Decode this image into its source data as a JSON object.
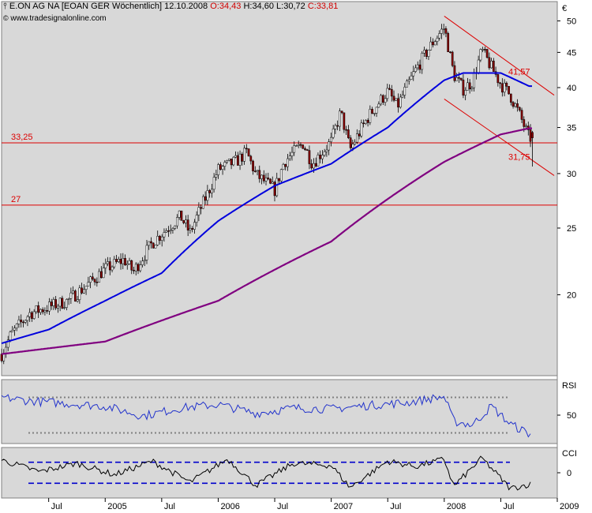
{
  "header": {
    "icon": "candlestick-icon",
    "instrument": "E.ON AG NA [EOAN GER  Wöchentlich]",
    "date": "12.10.2008",
    "ohlc": {
      "open_label": "O:",
      "open": "34,43",
      "high_label": "H:",
      "high": "34,60",
      "low_label": "L:",
      "low": "30,72",
      "close_label": "C:",
      "close": "33,81"
    }
  },
  "credit": {
    "mark": "©",
    "text": "www.tradesignalonline.com"
  },
  "colors": {
    "panel_bg": "#d8d8d8",
    "candle_up": "#ffffff",
    "candle_down": "#8b0000",
    "sma_fast": "#0000dd",
    "sma_slow": "#800080",
    "level": "#dd0000",
    "rsi": "#2233cc",
    "cci": "#000000",
    "band": "#0000cc",
    "rsi_band": "#808080"
  },
  "chart_data": [
    {
      "type": "candlestick",
      "title": "E.ON AG NA [EOAN GER  Wöchentlich]",
      "currency": "€",
      "y_scale": "log",
      "ylim": [
        15.5,
        52.5
      ],
      "y_ticks": [
        20,
        25,
        30,
        35,
        40,
        45,
        50
      ],
      "x_ticks": [
        "Jul",
        "2005",
        "Jul",
        "2006",
        "Jul",
        "2007",
        "Jul",
        "2008",
        "Jul",
        "2009"
      ],
      "x_tick_dates": [
        "2004-07",
        "2005-01",
        "2005-07",
        "2006-01",
        "2006-07",
        "2007-01",
        "2007-07",
        "2008-01",
        "2008-07",
        "2009-01"
      ],
      "xlim": [
        "2004-02",
        "2009-01"
      ],
      "grid": false,
      "price_anchors": [
        {
          "date": "2004-02",
          "close": 16.4
        },
        {
          "date": "2004-03",
          "close": 17.5
        },
        {
          "date": "2004-05",
          "close": 18.8
        },
        {
          "date": "2004-07",
          "close": 19.2
        },
        {
          "date": "2004-09",
          "close": 19.6
        },
        {
          "date": "2004-11",
          "close": 20.6
        },
        {
          "date": "2005-01",
          "close": 21.8
        },
        {
          "date": "2005-03",
          "close": 22.5
        },
        {
          "date": "2005-04",
          "close": 21.6
        },
        {
          "date": "2005-06",
          "close": 23.8
        },
        {
          "date": "2005-09",
          "close": 26.0
        },
        {
          "date": "2005-10",
          "close": 24.6
        },
        {
          "date": "2005-12",
          "close": 28.3
        },
        {
          "date": "2006-01",
          "close": 30.4
        },
        {
          "date": "2006-03",
          "close": 31.3
        },
        {
          "date": "2006-04",
          "close": 32.2
        },
        {
          "date": "2006-05",
          "close": 29.9
        },
        {
          "date": "2006-07",
          "close": 28.4
        },
        {
          "date": "2006-08",
          "close": 31.2
        },
        {
          "date": "2006-10",
          "close": 33.2
        },
        {
          "date": "2006-11",
          "close": 31.0
        },
        {
          "date": "2007-01",
          "close": 33.4
        },
        {
          "date": "2007-02",
          "close": 36.8
        },
        {
          "date": "2007-03",
          "close": 32.5
        },
        {
          "date": "2007-05",
          "close": 36.4
        },
        {
          "date": "2007-07",
          "close": 39.5
        },
        {
          "date": "2007-08",
          "close": 37.5
        },
        {
          "date": "2007-10",
          "close": 42.5
        },
        {
          "date": "2007-12",
          "close": 47.0
        },
        {
          "date": "2008-01",
          "close": 48.9
        },
        {
          "date": "2008-02",
          "close": 41.8
        },
        {
          "date": "2008-03",
          "close": 39.8
        },
        {
          "date": "2008-04",
          "close": 40.8
        },
        {
          "date": "2008-05",
          "close": 45.3
        },
        {
          "date": "2008-06",
          "close": 42.8
        },
        {
          "date": "2008-07",
          "close": 40.5
        },
        {
          "date": "2008-08",
          "close": 39.0
        },
        {
          "date": "2008-09",
          "close": 36.5
        },
        {
          "date": "2008-10",
          "close": 33.8
        }
      ],
      "last_candle": {
        "date": "2008-10-12",
        "open": 34.43,
        "high": 34.6,
        "low": 30.72,
        "close": 33.81
      },
      "sma_fast_anchors": [
        {
          "date": "2004-02",
          "value": 17.0
        },
        {
          "date": "2004-07",
          "value": 17.8
        },
        {
          "date": "2005-01",
          "value": 19.6
        },
        {
          "date": "2005-07",
          "value": 21.5
        },
        {
          "date": "2006-01",
          "value": 25.6
        },
        {
          "date": "2006-07",
          "value": 28.8
        },
        {
          "date": "2007-01",
          "value": 31.0
        },
        {
          "date": "2007-07",
          "value": 35.0
        },
        {
          "date": "2008-01",
          "value": 41.0
        },
        {
          "date": "2008-03",
          "value": 42.0
        },
        {
          "date": "2008-07",
          "value": 42.0
        },
        {
          "date": "2008-10",
          "value": 40.2
        }
      ],
      "sma_slow_anchors": [
        {
          "date": "2004-02",
          "value": 16.4
        },
        {
          "date": "2005-01",
          "value": 17.1
        },
        {
          "date": "2006-01",
          "value": 19.6
        },
        {
          "date": "2007-01",
          "value": 23.9
        },
        {
          "date": "2008-01",
          "value": 31.2
        },
        {
          "date": "2008-07",
          "value": 34.2
        },
        {
          "date": "2008-10",
          "value": 34.9
        }
      ],
      "horizontal_levels": [
        {
          "value": 33.25,
          "label": "33,25"
        },
        {
          "value": 27,
          "label": "27"
        }
      ],
      "trend_channel": {
        "upper": {
          "from": {
            "date": "2008-01",
            "value": 50.8
          },
          "to": {
            "date": "2008-12",
            "value": 39.0
          }
        },
        "lower": {
          "from": {
            "date": "2008-01",
            "value": 38.5
          },
          "to": {
            "date": "2008-12",
            "value": 29.8
          }
        },
        "labels": [
          {
            "value": 41.57,
            "text": "41,57",
            "at": "upper"
          },
          {
            "value": 31.75,
            "text": "31,75",
            "at": "lower"
          }
        ]
      }
    },
    {
      "type": "line",
      "name": "RSI",
      "y_ticks": [
        50
      ],
      "bands": [
        70,
        30
      ],
      "ylim": [
        18,
        90
      ],
      "anchors": [
        {
          "date": "2004-02",
          "value": 70
        },
        {
          "date": "2004-05",
          "value": 66
        },
        {
          "date": "2004-09",
          "value": 63
        },
        {
          "date": "2005-01",
          "value": 60
        },
        {
          "date": "2005-05",
          "value": 49
        },
        {
          "date": "2005-09",
          "value": 58
        },
        {
          "date": "2006-01",
          "value": 62
        },
        {
          "date": "2006-05",
          "value": 52
        },
        {
          "date": "2006-09",
          "value": 58
        },
        {
          "date": "2007-01",
          "value": 57
        },
        {
          "date": "2007-05",
          "value": 61
        },
        {
          "date": "2007-09",
          "value": 64
        },
        {
          "date": "2008-01",
          "value": 71
        },
        {
          "date": "2008-02",
          "value": 43
        },
        {
          "date": "2008-04",
          "value": 39
        },
        {
          "date": "2008-06",
          "value": 60
        },
        {
          "date": "2008-08",
          "value": 40
        },
        {
          "date": "2008-10",
          "value": 29
        }
      ]
    },
    {
      "type": "line",
      "name": "CCI",
      "y_ticks": [
        0
      ],
      "bands": [
        100,
        -100
      ],
      "ylim": [
        -240,
        240
      ],
      "anchors": [
        {
          "date": "2004-02",
          "value": 120
        },
        {
          "date": "2004-06",
          "value": 10
        },
        {
          "date": "2004-10",
          "value": 90
        },
        {
          "date": "2005-02",
          "value": -20
        },
        {
          "date": "2005-06",
          "value": 110
        },
        {
          "date": "2005-10",
          "value": -90
        },
        {
          "date": "2006-02",
          "value": 130
        },
        {
          "date": "2006-05",
          "value": -120
        },
        {
          "date": "2006-09",
          "value": 90
        },
        {
          "date": "2007-01",
          "value": 70
        },
        {
          "date": "2007-03",
          "value": -140
        },
        {
          "date": "2007-07",
          "value": 110
        },
        {
          "date": "2007-10",
          "value": 60
        },
        {
          "date": "2008-01",
          "value": 130
        },
        {
          "date": "2008-02",
          "value": -130
        },
        {
          "date": "2008-05",
          "value": 140
        },
        {
          "date": "2008-08",
          "value": -150
        },
        {
          "date": "2008-10",
          "value": -110
        }
      ]
    }
  ]
}
